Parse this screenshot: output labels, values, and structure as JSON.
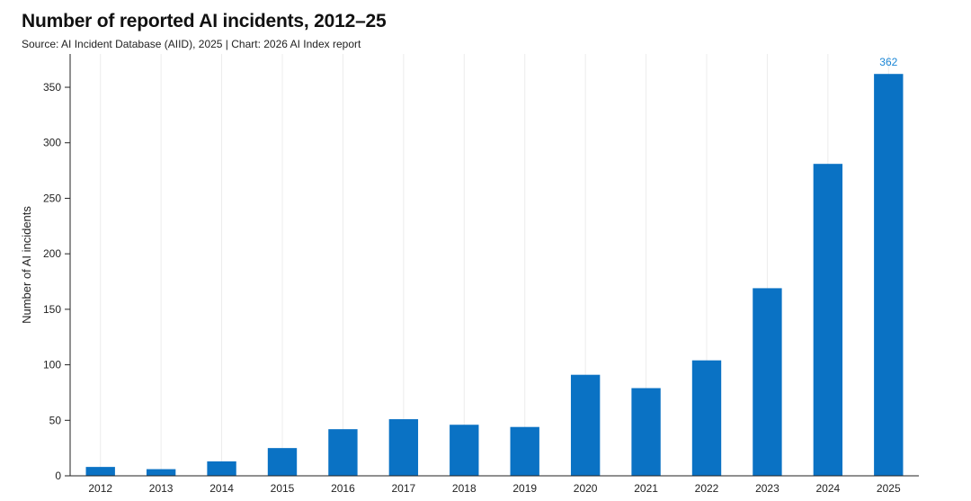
{
  "chart_data": {
    "type": "bar",
    "title": "Number of reported AI incidents, 2012–25",
    "subtitle": "Source: AI Incident Database (AIID), 2025 | Chart: 2026 AI Index report",
    "xlabel": "",
    "ylabel": "Number of AI incidents",
    "categories": [
      "2012",
      "2013",
      "2014",
      "2015",
      "2016",
      "2017",
      "2018",
      "2019",
      "2020",
      "2021",
      "2022",
      "2023",
      "2024",
      "2025"
    ],
    "values": [
      8,
      6,
      13,
      25,
      42,
      51,
      46,
      44,
      91,
      79,
      104,
      169,
      281,
      362
    ],
    "data_labels": [
      {
        "category": "2025",
        "text": "362"
      }
    ],
    "ylim": [
      0,
      380
    ],
    "yticks": [
      0,
      50,
      100,
      150,
      200,
      250,
      300,
      350
    ],
    "grid": "vertical",
    "legend": "none",
    "bar_color": "#0a72c4",
    "label_color": "#1a86d6"
  }
}
